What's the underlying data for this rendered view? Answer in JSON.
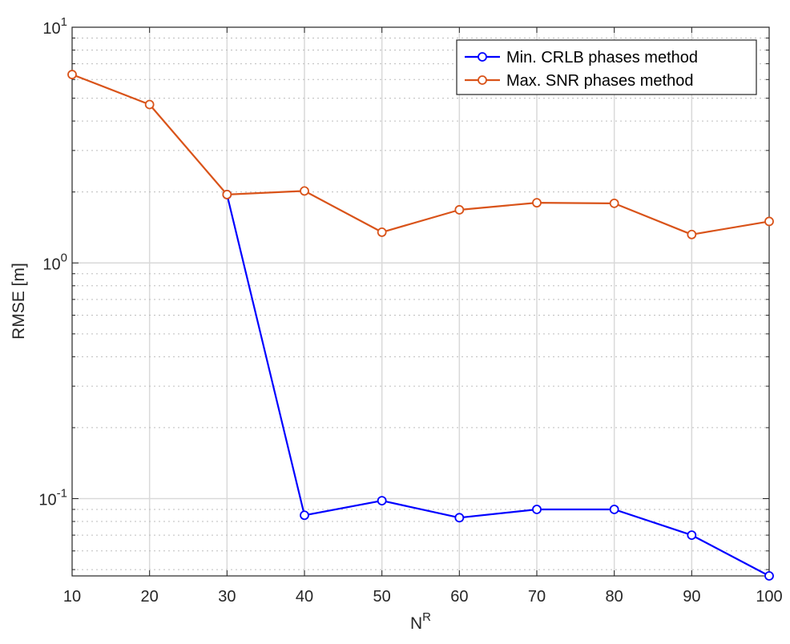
{
  "chart_data": {
    "type": "line",
    "title": "",
    "xlabel": "N",
    "xlabel_superscript": "R",
    "ylabel": "RMSE [m]",
    "x": [
      10,
      20,
      30,
      40,
      50,
      60,
      70,
      80,
      90,
      100
    ],
    "xlim": [
      10,
      100
    ],
    "ylim": [
      0.047,
      10
    ],
    "yscale": "log",
    "grid": true,
    "legend_position": "top-right",
    "x_ticks": [
      "10",
      "20",
      "30",
      "40",
      "50",
      "60",
      "70",
      "80",
      "90",
      "100"
    ],
    "y_ticks": [
      {
        "value": 0.1,
        "base": "10",
        "exp": "-1"
      },
      {
        "value": 1,
        "base": "10",
        "exp": "0"
      },
      {
        "value": 10,
        "base": "10",
        "exp": "1"
      }
    ],
    "series": [
      {
        "name": "Min. CRLB phases method",
        "color": "#0000ff",
        "marker": "circle",
        "values": [
          null,
          null,
          1.95,
          0.085,
          0.098,
          0.083,
          0.09,
          0.09,
          0.07,
          0.047
        ]
      },
      {
        "name": "Max. SNR phases method",
        "color": "#d95319",
        "marker": "circle",
        "values": [
          6.3,
          4.7,
          1.95,
          2.02,
          1.35,
          1.68,
          1.8,
          1.79,
          1.32,
          1.5
        ]
      }
    ]
  }
}
